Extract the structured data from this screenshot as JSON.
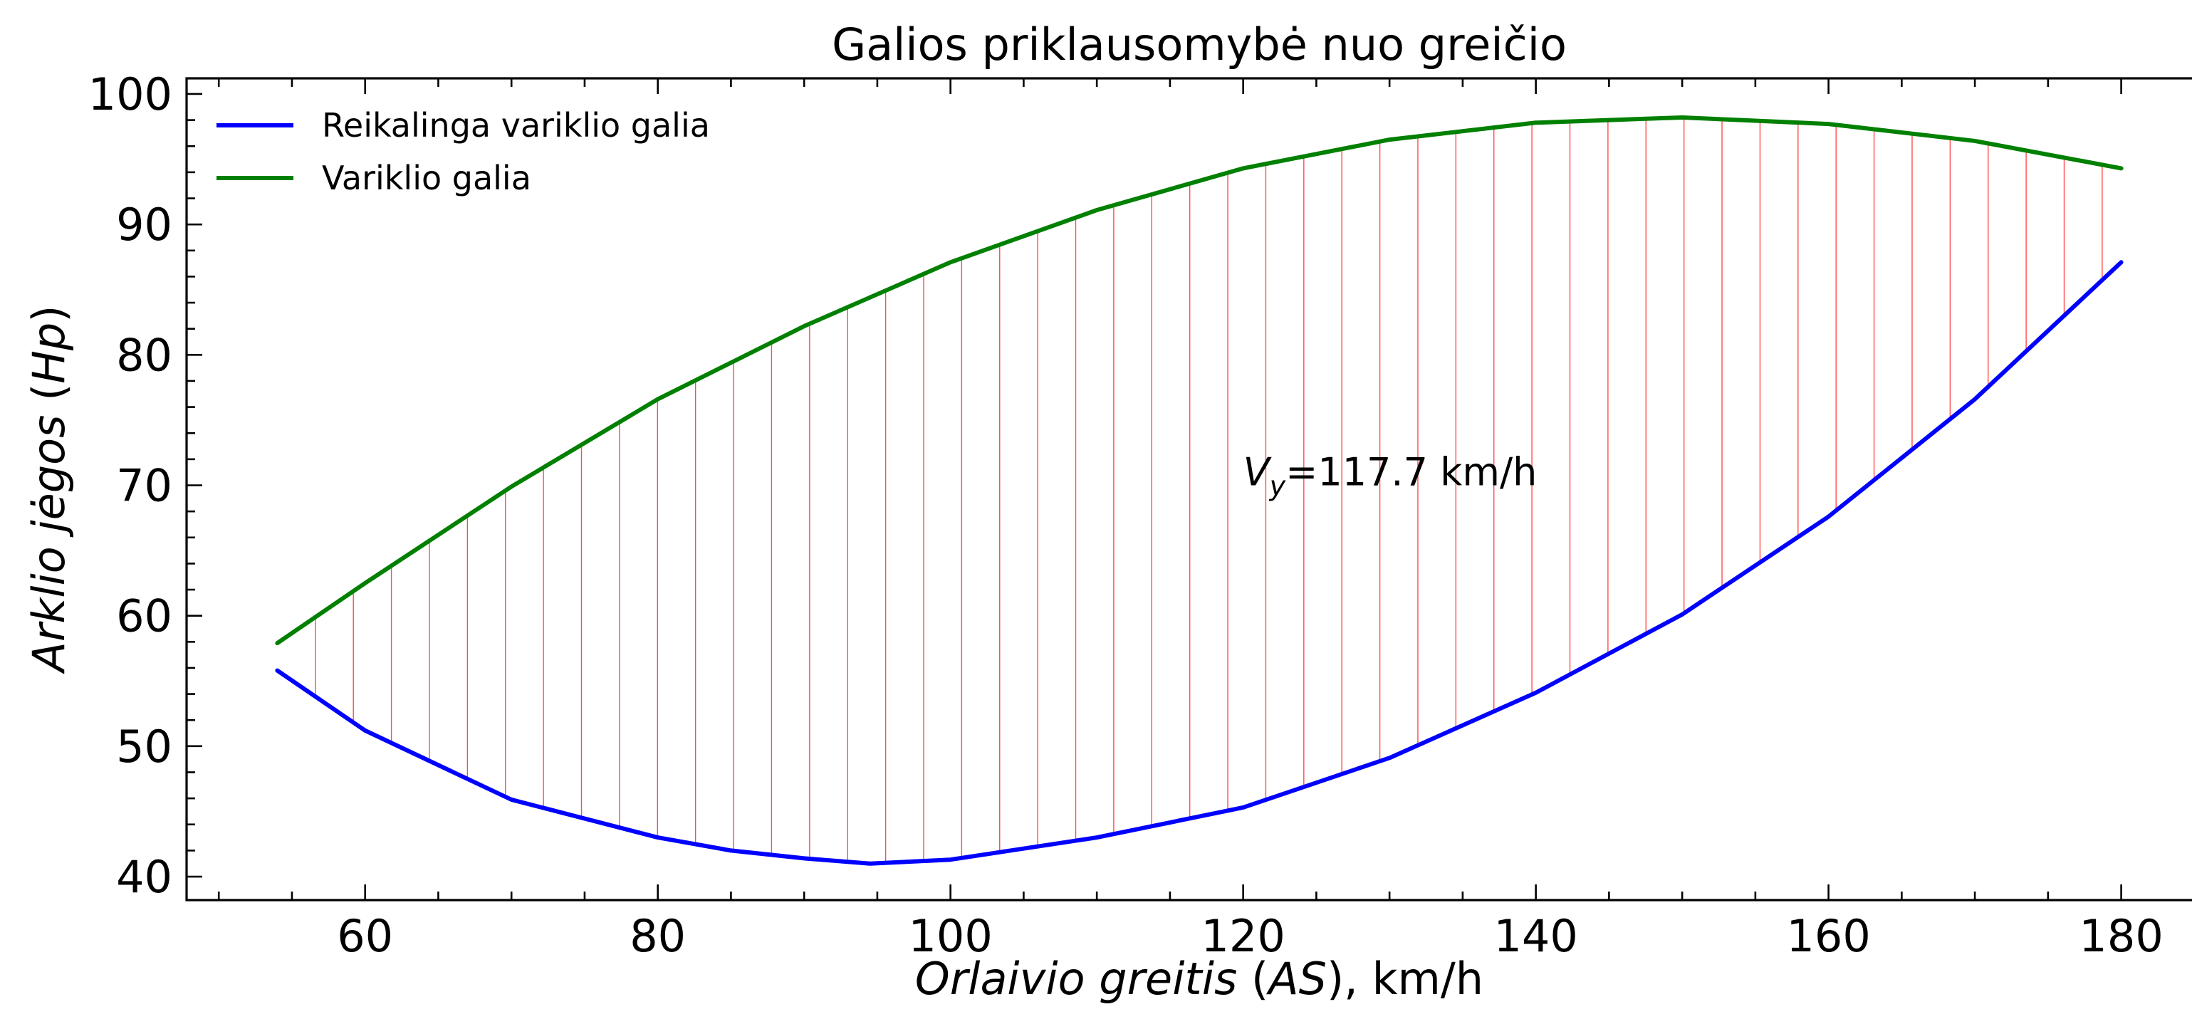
{
  "chart_data": {
    "type": "line",
    "title": "Galios priklausomybė nuo greičio",
    "xlabel": {
      "italic": "Orlaivio greitis",
      "rest": " (",
      "italic2": "AS",
      "rest2": "),  km/h"
    },
    "ylabel": {
      "italic": "Arklio jėgos",
      "rest": " (",
      "italic2": "Hp",
      "rest2": ")"
    },
    "xlim": [
      47.8,
      186.2
    ],
    "ylim": [
      38.2,
      101.2
    ],
    "xticks": [
      60,
      80,
      100,
      120,
      140,
      160,
      180
    ],
    "yticks": [
      40,
      50,
      60,
      70,
      80,
      90,
      100
    ],
    "grid": false,
    "legend_position": "top-left",
    "series": [
      {
        "name": "Reikalinga variklio galia",
        "color": "#0000ff",
        "x": [
          54,
          60,
          70,
          80,
          85,
          90,
          94.5,
          100,
          110,
          120,
          130,
          140,
          150,
          160,
          170,
          180
        ],
        "y": [
          55.8,
          51.2,
          45.9,
          43.0,
          42.0,
          41.4,
          41.0,
          41.3,
          43.0,
          45.3,
          49.1,
          54.1,
          60.1,
          67.6,
          76.6,
          87.1
        ]
      },
      {
        "name": "Variklio galia",
        "color": "#008000",
        "x": [
          54,
          60,
          70,
          80,
          90,
          100,
          110,
          120,
          130,
          140,
          150,
          160,
          170,
          180
        ],
        "y": [
          57.9,
          62.5,
          69.9,
          76.6,
          82.2,
          87.1,
          91.1,
          94.3,
          96.5,
          97.8,
          98.2,
          97.7,
          96.4,
          94.3
        ]
      }
    ],
    "fill_between": {
      "color": "#ff0000",
      "x_start": 56.6,
      "x_end": 178.7,
      "count": 48
    },
    "annotation": {
      "symbol": "V",
      "subscript": "y",
      "text": "=117.7 km/h",
      "x": 120,
      "y": 70
    }
  }
}
